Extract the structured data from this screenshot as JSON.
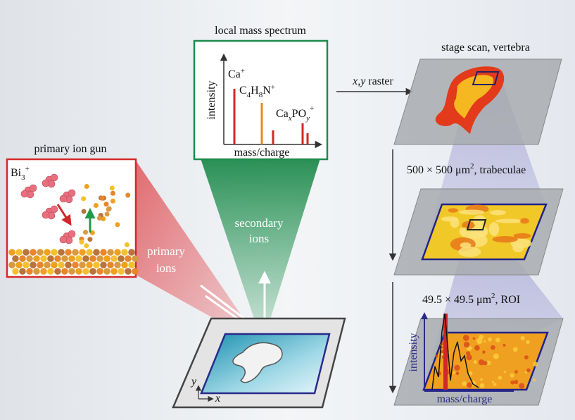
{
  "spectrum": {
    "title": "local mass spectrum",
    "y_label": "intensity",
    "x_label": "mass/charge",
    "peaks": [
      [
        "Ca",
        "+"
      ],
      [
        "C",
        "4",
        "H",
        "8",
        "N",
        "+"
      ],
      [
        "Ca",
        "x",
        "PO",
        "y",
        "+"
      ]
    ]
  },
  "ion_gun": {
    "title": "primary ion gun",
    "species": [
      "Bi",
      "3",
      "+"
    ]
  },
  "beams": {
    "primary": [
      "primary",
      "ions"
    ],
    "secondary": [
      "secondary",
      "ions"
    ]
  },
  "sample": {
    "y_axis": "y",
    "x_axis": "x"
  },
  "raster": {
    "label": [
      "x,y",
      " raster"
    ]
  },
  "stages": [
    {
      "label": [
        "stage scan, vertebra"
      ]
    },
    {
      "label": [
        "500 × 500 μm",
        "2",
        ", trabeculae"
      ]
    },
    {
      "label": [
        "49.5 × 49.5 μm",
        "2",
        ", ROI"
      ]
    }
  ],
  "roi_spectrum": {
    "y_label": "intensity",
    "x_label": "mass/charge"
  }
}
